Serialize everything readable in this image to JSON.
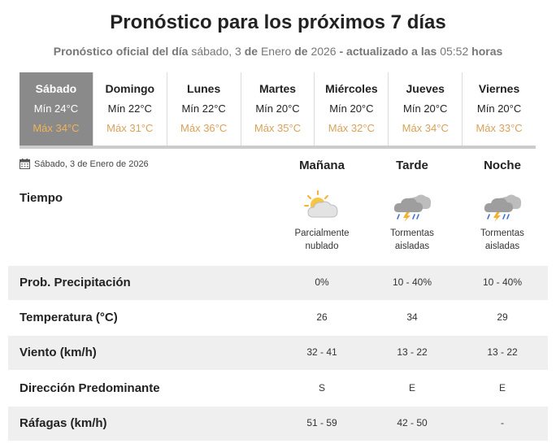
{
  "header": {
    "title": "Pronóstico para los próximos 7 días",
    "subtitle": {
      "prefix": "Pronóstico oficial del día",
      "weekday": "sábado, 3",
      "de1": "de",
      "month_year": "Enero",
      "de2": "de",
      "year": "2026",
      "updated_label": "- actualizado a las",
      "time": "05:52",
      "hours_label": "horas"
    }
  },
  "days": [
    {
      "name": "Sábado",
      "min": "Mín 24°C",
      "max": "Máx 34°C",
      "active": true
    },
    {
      "name": "Domingo",
      "min": "Mín 22°C",
      "max": "Máx 31°C"
    },
    {
      "name": "Lunes",
      "min": "Mín 22°C",
      "max": "Máx 36°C"
    },
    {
      "name": "Martes",
      "min": "Mín 20°C",
      "max": "Máx 35°C"
    },
    {
      "name": "Miércoles",
      "min": "Mín 20°C",
      "max": "Máx 32°C"
    },
    {
      "name": "Jueves",
      "min": "Mín 20°C",
      "max": "Máx 34°C"
    },
    {
      "name": "Viernes",
      "min": "Mín 20°C",
      "max": "Máx 33°C"
    }
  ],
  "detail": {
    "date": "Sábado, 3 de Enero de 2026",
    "calendar_icon": "calendar-icon",
    "periods": [
      "Mañana",
      "Tarde",
      "Noche"
    ],
    "tiempo_label": "Tiempo",
    "weather": [
      {
        "icon": "partly-cloudy-icon",
        "line1": "Parcialmente",
        "line2": "nublado"
      },
      {
        "icon": "thunderstorm-icon",
        "line1": "Tormentas",
        "line2": "aisladas"
      },
      {
        "icon": "thunderstorm-icon",
        "line1": "Tormentas",
        "line2": "aisladas"
      }
    ],
    "rows": [
      {
        "label": "Prob. Precipitación",
        "values": [
          "0%",
          "10 - 40%",
          "10 - 40%"
        ]
      },
      {
        "label": "Temperatura (°C)",
        "values": [
          "26",
          "34",
          "29"
        ]
      },
      {
        "label": "Viento (km/h)",
        "values": [
          "32 - 41",
          "13 - 22",
          "13 - 22"
        ]
      },
      {
        "label": "Dirección Predominante",
        "values": [
          "S",
          "E",
          "E"
        ]
      },
      {
        "label": "Ráfagas (km/h)",
        "values": [
          "51 - 59",
          "42 - 50",
          "-"
        ]
      }
    ]
  },
  "colors": {
    "active_day_bg": "#8a8a8a",
    "max_temp": "#d9a25a",
    "row_shade": "#efefef"
  }
}
